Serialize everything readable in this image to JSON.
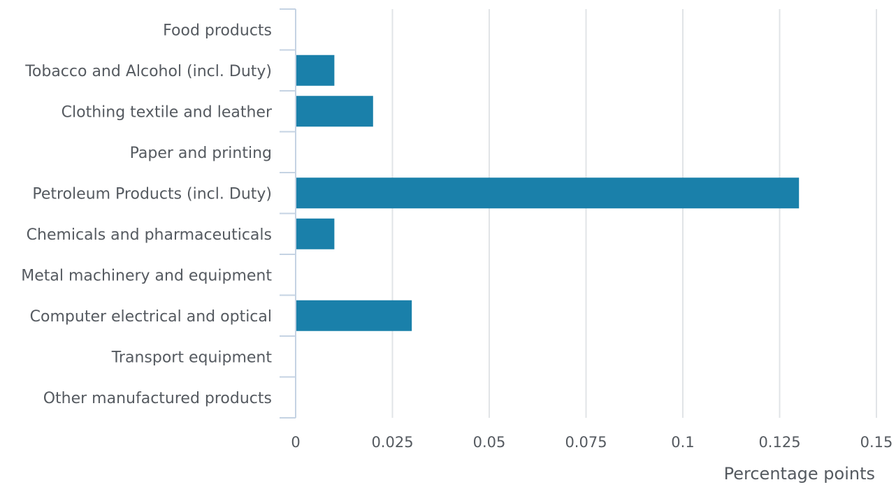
{
  "chart_data": {
    "type": "bar",
    "orientation": "horizontal",
    "title": "",
    "xlabel": "Percentage points",
    "ylabel": "",
    "categories": [
      "Food products",
      "Tobacco and Alcohol (incl. Duty)",
      "Clothing textile and leather",
      "Paper and printing",
      "Petroleum Products (incl. Duty)",
      "Chemicals and pharmaceuticals",
      "Metal machinery and equipment",
      "Computer electrical and optical",
      "Transport equipment",
      "Other manufactured products"
    ],
    "values": [
      0,
      0.01,
      0.02,
      0,
      0.13,
      0.01,
      0,
      0.03,
      0,
      0
    ],
    "xlim": [
      0,
      0.15
    ],
    "xticks": [
      0,
      0.025,
      0.05,
      0.075,
      0.1,
      0.125,
      0.15
    ],
    "xtick_labels": [
      "0",
      "0.025",
      "0.05",
      "0.075",
      "0.1",
      "0.125",
      "0.15"
    ],
    "grid": "vertical",
    "legend": "none",
    "colors": {
      "bar": "#1a80aa",
      "grid": "#e1e4e7",
      "axis": "#c5d3e3",
      "text": "#555a60"
    }
  }
}
